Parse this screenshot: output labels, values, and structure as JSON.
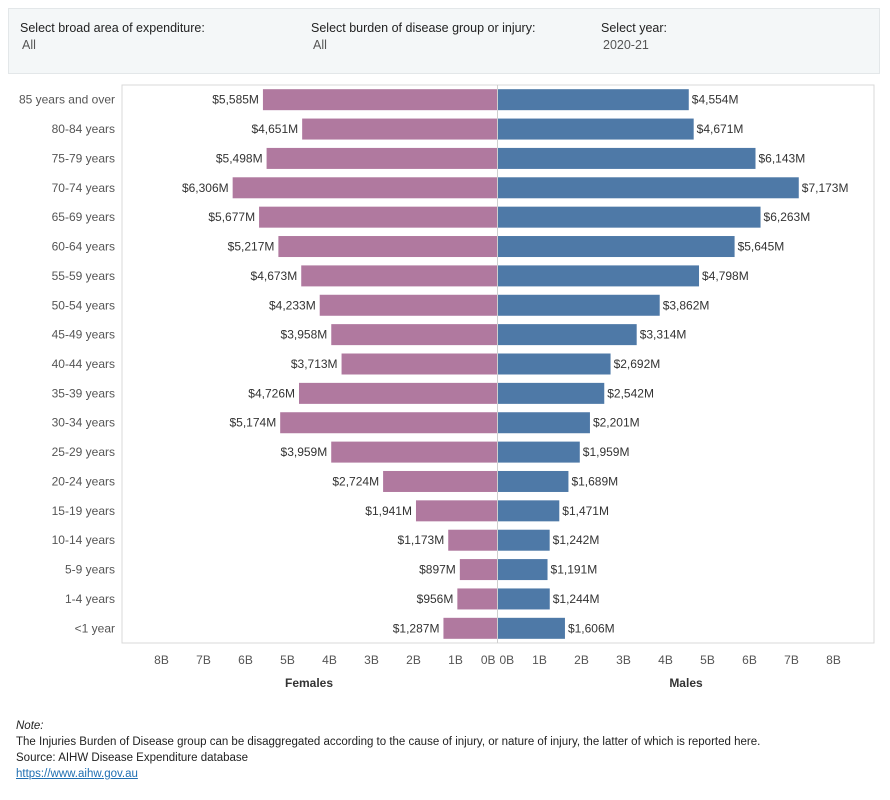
{
  "filters": {
    "area": {
      "label": "Select broad area of expenditure:",
      "value": "All"
    },
    "group": {
      "label": "Select burden of disease group or injury:",
      "value": "All"
    },
    "year": {
      "label": "Select year:",
      "value": "2020-21"
    }
  },
  "chart_data": {
    "type": "bar",
    "orientation": "horizontal-butterfly",
    "categories": [
      "85 years and over",
      "80-84 years",
      "75-79 years",
      "70-74 years",
      "65-69 years",
      "60-64 years",
      "55-59 years",
      "50-54 years",
      "45-49 years",
      "40-44 years",
      "35-39 years",
      "30-34 years",
      "25-29 years",
      "20-24 years",
      "15-19 years",
      "10-14 years",
      "5-9 years",
      "1-4 years",
      "<1 year"
    ],
    "series": [
      {
        "name": "Females",
        "color": "#b0799f",
        "values": [
          5585,
          4651,
          5498,
          6306,
          5677,
          5217,
          4673,
          4233,
          3958,
          3713,
          4726,
          5174,
          3959,
          2724,
          1941,
          1173,
          897,
          956,
          1287
        ],
        "labels": [
          "$5,585M",
          "$4,651M",
          "$5,498M",
          "$6,306M",
          "$5,677M",
          "$5,217M",
          "$4,673M",
          "$4,233M",
          "$3,958M",
          "$3,713M",
          "$4,726M",
          "$5,174M",
          "$3,959M",
          "$2,724M",
          "$1,941M",
          "$1,173M",
          "$897M",
          "$956M",
          "$1,287M"
        ]
      },
      {
        "name": "Males",
        "color": "#4e79a7",
        "values": [
          4554,
          4671,
          6143,
          7173,
          6263,
          5645,
          4798,
          3862,
          3314,
          2692,
          2542,
          2201,
          1959,
          1689,
          1471,
          1242,
          1191,
          1244,
          1606
        ],
        "labels": [
          "$4,554M",
          "$4,671M",
          "$6,143M",
          "$7,173M",
          "$6,263M",
          "$5,645M",
          "$4,798M",
          "$3,862M",
          "$3,314M",
          "$2,692M",
          "$2,542M",
          "$2,201M",
          "$1,959M",
          "$1,689M",
          "$1,471M",
          "$1,242M",
          "$1,191M",
          "$1,244M",
          "$1,606M"
        ]
      }
    ],
    "unit": "$ million",
    "xlim": [
      0,
      9000
    ],
    "ticks": [
      0,
      1000,
      2000,
      3000,
      4000,
      5000,
      6000,
      7000,
      8000
    ],
    "tick_labels": [
      "0B",
      "1B",
      "2B",
      "3B",
      "4B",
      "5B",
      "6B",
      "7B",
      "8B"
    ],
    "xlabel_left": "Females",
    "xlabel_right": "Males",
    "grid": false
  },
  "notes": {
    "title": "Note:",
    "line1": "The Injuries Burden of Disease group can be disaggregated according to the cause of injury, or nature of injury, the latter of which is reported here.",
    "line2": "Source: AIHW Disease Expenditure database",
    "link": "https://www.aihw.gov.au"
  }
}
